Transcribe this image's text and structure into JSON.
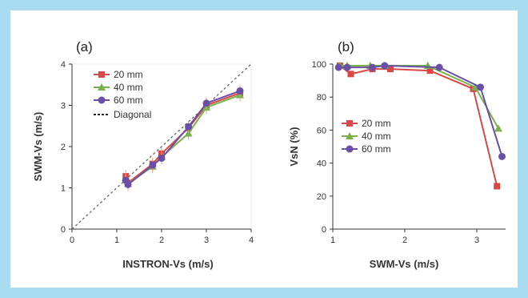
{
  "colors": {
    "frame": "#a9dcf0",
    "s20": "#d94848",
    "s40": "#79b14a",
    "s60": "#6a4ea8",
    "diagonal": "#555555",
    "errorbar": "#e8a090"
  },
  "chart_data": [
    {
      "type": "line",
      "panel_label": "(a)",
      "xlabel": "INSTRON-Vs (m/s)",
      "ylabel": "SWM-Vs (m/s)",
      "xlim": [
        0,
        4
      ],
      "ylim": [
        0,
        4
      ],
      "xticks": [
        "0",
        "1",
        "2",
        "3",
        "4"
      ],
      "yticks": [
        "0",
        "1",
        "2",
        "3",
        "4"
      ],
      "legend": "top-left",
      "diagonal_label": "Diagonal",
      "series": [
        {
          "name": "20 mm",
          "color_key": "s20",
          "marker": "square",
          "x": [
            1.2,
            1.25,
            1.8,
            2.0,
            2.6,
            3.0,
            3.75
          ],
          "y": [
            1.28,
            1.12,
            1.58,
            1.83,
            2.45,
            3.0,
            3.3
          ]
        },
        {
          "name": "40 mm",
          "color_key": "s40",
          "marker": "triangle",
          "x": [
            1.2,
            1.25,
            1.8,
            2.0,
            2.6,
            3.0,
            3.75
          ],
          "y": [
            1.2,
            1.1,
            1.52,
            1.75,
            2.32,
            2.95,
            3.25
          ]
        },
        {
          "name": "60 mm",
          "color_key": "s60",
          "marker": "circle",
          "x": [
            1.2,
            1.25,
            1.8,
            2.0,
            2.6,
            3.0,
            3.75
          ],
          "y": [
            1.18,
            1.08,
            1.55,
            1.72,
            2.48,
            3.05,
            3.35
          ]
        }
      ]
    },
    {
      "type": "line",
      "panel_label": "(b)",
      "xlabel": "SWM-Vs (m/s)",
      "ylabel": "VsN (%)",
      "xlim": [
        1,
        3.4
      ],
      "ylim": [
        0,
        100
      ],
      "xticks": [
        "1",
        "2",
        "3"
      ],
      "yticks": [
        "0",
        "20",
        "40",
        "60",
        "80",
        "100"
      ],
      "legend": "bottom-center",
      "series": [
        {
          "name": "20 mm",
          "color_key": "s20",
          "marker": "square",
          "x": [
            1.1,
            1.25,
            1.55,
            1.8,
            2.35,
            2.95,
            3.28
          ],
          "y": [
            99,
            94,
            97,
            97,
            96,
            85,
            26
          ]
        },
        {
          "name": "40 mm",
          "color_key": "s40",
          "marker": "triangle",
          "x": [
            1.1,
            1.2,
            1.52,
            1.72,
            2.32,
            2.98,
            3.3
          ],
          "y": [
            99,
            99,
            99,
            99,
            99,
            86,
            61
          ]
        },
        {
          "name": "60 mm",
          "color_key": "s60",
          "marker": "circle",
          "x": [
            1.08,
            1.2,
            1.55,
            1.72,
            2.48,
            3.05,
            3.35
          ],
          "y": [
            98,
            98,
            98,
            99,
            98,
            86,
            44
          ]
        }
      ]
    }
  ]
}
